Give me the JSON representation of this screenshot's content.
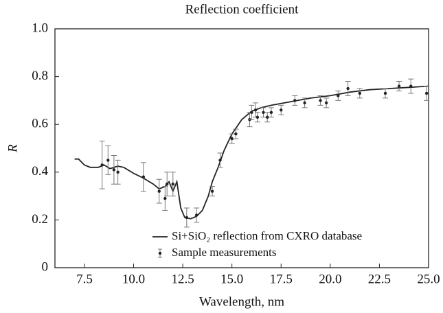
{
  "chart_data": {
    "type": "line",
    "title": "Reflection coefficient",
    "x_label": "Wavelength, nm",
    "y_label": "R",
    "xlim": [
      6,
      25
    ],
    "ylim": [
      0,
      1
    ],
    "xticks": [
      7.5,
      {
        "value": 10,
        "label": "10.0"
      },
      12.5,
      {
        "value": 15,
        "label": "15.0"
      },
      17.5,
      {
        "value": 20,
        "label": "20.0"
      },
      22.5,
      {
        "value": 25,
        "label": "25.0"
      }
    ],
    "yticks": [
      0,
      0.2,
      0.4,
      0.6,
      0.8,
      {
        "value": 1,
        "label": "1.0"
      }
    ],
    "legend": "lower center",
    "series": [
      {
        "name": "Si+SiO₂ reflection from CXRO database",
        "type": "line",
        "color": "#222",
        "x": [
          7.0,
          7.2,
          7.5,
          7.8,
          8.2,
          8.5,
          8.8,
          9.2,
          9.5,
          10.0,
          10.5,
          11.0,
          11.3,
          11.6,
          11.8,
          12.0,
          12.2,
          12.4,
          12.6,
          12.9,
          13.2,
          13.5,
          13.8,
          14.0,
          14.3,
          14.6,
          15.0,
          15.5,
          16.0,
          16.5,
          17.0,
          18.0,
          19.0,
          20.0,
          21.0,
          22.0,
          23.0,
          24.0,
          25.0
        ],
        "values": [
          0.455,
          0.455,
          0.43,
          0.42,
          0.42,
          0.43,
          0.415,
          0.425,
          0.42,
          0.395,
          0.375,
          0.35,
          0.33,
          0.34,
          0.36,
          0.32,
          0.36,
          0.25,
          0.21,
          0.205,
          0.215,
          0.24,
          0.3,
          0.36,
          0.42,
          0.49,
          0.56,
          0.62,
          0.655,
          0.67,
          0.68,
          0.695,
          0.71,
          0.72,
          0.735,
          0.745,
          0.75,
          0.755,
          0.76
        ]
      },
      {
        "name": "Sample measurements",
        "type": "errorbar",
        "color": "#222",
        "x": [
          8.4,
          8.7,
          9.0,
          9.2,
          10.5,
          11.3,
          11.6,
          11.7,
          12.0,
          12.7,
          13.2,
          14.0,
          14.4,
          15.0,
          15.2,
          15.9,
          16.0,
          16.2,
          16.3,
          16.6,
          16.8,
          17.0,
          17.5,
          18.2,
          18.7,
          19.5,
          19.8,
          20.4,
          20.9,
          21.5,
          22.8,
          23.5,
          24.1,
          24.9
        ],
        "values": [
          0.43,
          0.45,
          0.41,
          0.4,
          0.38,
          0.32,
          0.29,
          0.35,
          0.35,
          0.21,
          0.22,
          0.32,
          0.45,
          0.54,
          0.56,
          0.62,
          0.65,
          0.66,
          0.63,
          0.65,
          0.63,
          0.65,
          0.66,
          0.7,
          0.69,
          0.7,
          0.69,
          0.72,
          0.75,
          0.73,
          0.73,
          0.76,
          0.76,
          0.73
        ],
        "errors": [
          0.1,
          0.06,
          0.06,
          0.05,
          0.06,
          0.05,
          0.05,
          0.05,
          0.05,
          0.04,
          0.03,
          0.02,
          0.03,
          0.02,
          0.02,
          0.03,
          0.03,
          0.03,
          0.02,
          0.02,
          0.02,
          0.02,
          0.02,
          0.02,
          0.02,
          0.02,
          0.02,
          0.02,
          0.03,
          0.02,
          0.02,
          0.02,
          0.03,
          0.03
        ]
      }
    ]
  }
}
